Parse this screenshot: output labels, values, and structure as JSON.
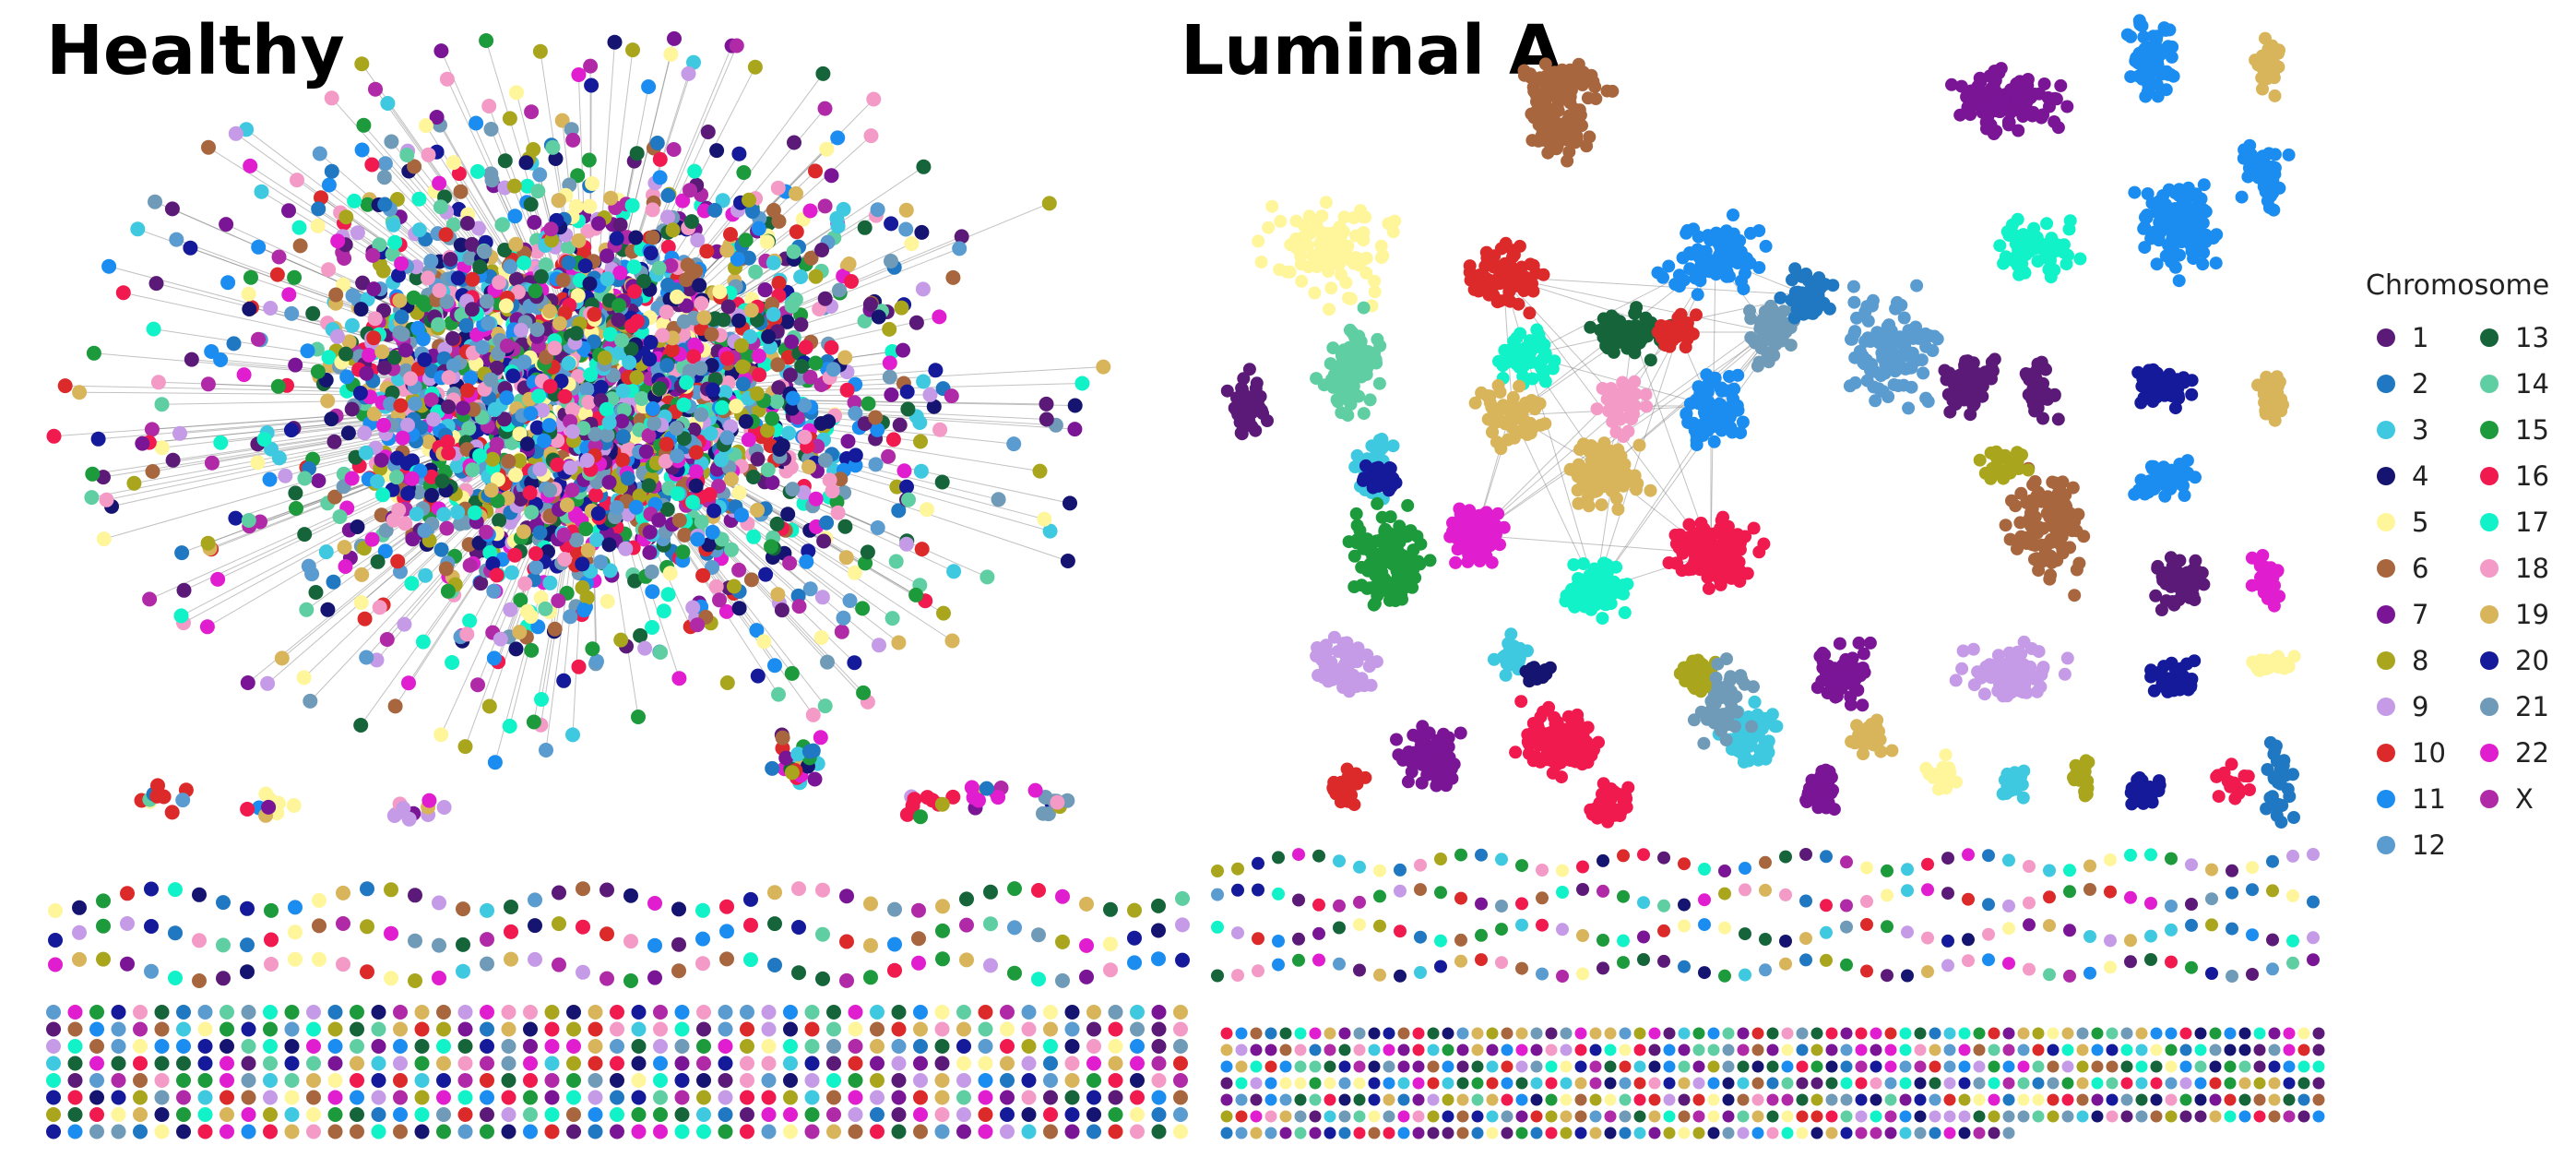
{
  "panels": [
    {
      "title": "Healthy"
    },
    {
      "title": "Luminal A"
    }
  ],
  "legend": {
    "title": "Chromosome",
    "entries": [
      {
        "label": "1",
        "color": "#5b1a78"
      },
      {
        "label": "2",
        "color": "#1f78c1"
      },
      {
        "label": "3",
        "color": "#3ec9e0"
      },
      {
        "label": "4",
        "color": "#151470"
      },
      {
        "label": "5",
        "color": "#fff59a"
      },
      {
        "label": "6",
        "color": "#a8663f"
      },
      {
        "label": "7",
        "color": "#7a1596"
      },
      {
        "label": "8",
        "color": "#a9a61e"
      },
      {
        "label": "9",
        "color": "#c59ae6"
      },
      {
        "label": "10",
        "color": "#dc2a2a"
      },
      {
        "label": "11",
        "color": "#1c8df0"
      },
      {
        "label": "12",
        "color": "#5a9bd0"
      },
      {
        "label": "13",
        "color": "#16653a"
      },
      {
        "label": "14",
        "color": "#5fcfa3"
      },
      {
        "label": "15",
        "color": "#1d9a3c"
      },
      {
        "label": "16",
        "color": "#f01a4f"
      },
      {
        "label": "17",
        "color": "#12f2c9"
      },
      {
        "label": "18",
        "color": "#f39ac7"
      },
      {
        "label": "19",
        "color": "#d8b45a"
      },
      {
        "label": "20",
        "color": "#141a9a"
      },
      {
        "label": "21",
        "color": "#6f9bb8"
      },
      {
        "label": "22",
        "color": "#e01ed0"
      },
      {
        "label": "X",
        "color": "#b02aa8"
      }
    ]
  }
}
